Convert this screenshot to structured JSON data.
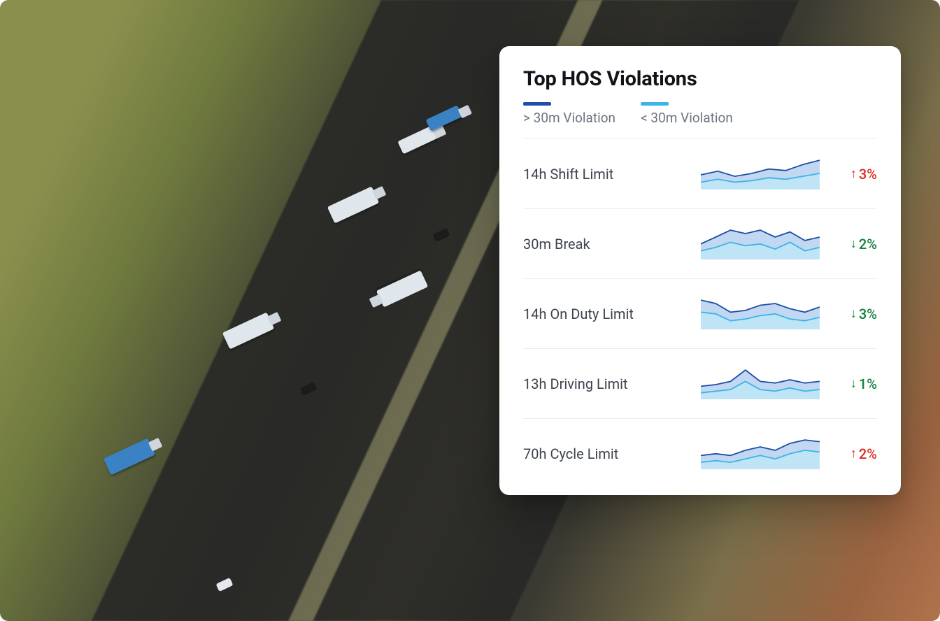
{
  "background": {
    "description": "aerial photo of divided desert highway with semi trucks",
    "dominant_colors": [
      "#8a8f4d",
      "#3a3a32",
      "#7a6f4a",
      "#b0734c"
    ]
  },
  "card": {
    "title": "Top HOS Violations",
    "background_color": "#ffffff",
    "border_radius": 14,
    "title_fontsize": 29,
    "legend": [
      {
        "label": "> 30m Violation",
        "color": "#1e4ea8"
      },
      {
        "label": "< 30m Violation",
        "color": "#3bb4e6"
      }
    ],
    "spark_style": {
      "width": 170,
      "height": 44,
      "line_color_top": "#1e4ea8",
      "fill_color_top": "#8fb7e5",
      "line_color_bottom": "#3bb4e6",
      "fill_color_bottom": "#bfe6f6",
      "line_width": 1.8
    },
    "delta_colors": {
      "up": "#d92d20",
      "down": "#15803d"
    },
    "rows": [
      {
        "label": "14h Shift Limit",
        "delta_direction": "up",
        "delta_text": "3%",
        "series_top": [
          20,
          25,
          18,
          22,
          28,
          26,
          34,
          40
        ],
        "series_bottom": [
          10,
          14,
          10,
          12,
          16,
          14,
          18,
          22
        ]
      },
      {
        "label": "30m Break",
        "delta_direction": "down",
        "delta_text": "2%",
        "series_top": [
          18,
          26,
          34,
          30,
          34,
          26,
          32,
          22,
          26
        ],
        "series_bottom": [
          10,
          14,
          20,
          16,
          18,
          12,
          20,
          10,
          14
        ]
      },
      {
        "label": "14h On Duty Limit",
        "delta_direction": "down",
        "delta_text": "3%",
        "series_top": [
          34,
          30,
          20,
          22,
          28,
          30,
          24,
          20,
          26
        ],
        "series_bottom": [
          20,
          18,
          10,
          12,
          16,
          18,
          12,
          10,
          14
        ]
      },
      {
        "label": "13h Driving Limit",
        "delta_direction": "down",
        "delta_text": "1%",
        "series_top": [
          16,
          18,
          22,
          36,
          22,
          20,
          24,
          20,
          22
        ],
        "series_bottom": [
          8,
          10,
          12,
          22,
          12,
          10,
          14,
          10,
          12
        ]
      },
      {
        "label": "70h Cycle Limit",
        "delta_direction": "up",
        "delta_text": "2%",
        "series_top": [
          16,
          18,
          16,
          22,
          26,
          22,
          30,
          34,
          32
        ],
        "series_bottom": [
          8,
          10,
          8,
          12,
          16,
          12,
          18,
          22,
          20
        ]
      }
    ]
  }
}
